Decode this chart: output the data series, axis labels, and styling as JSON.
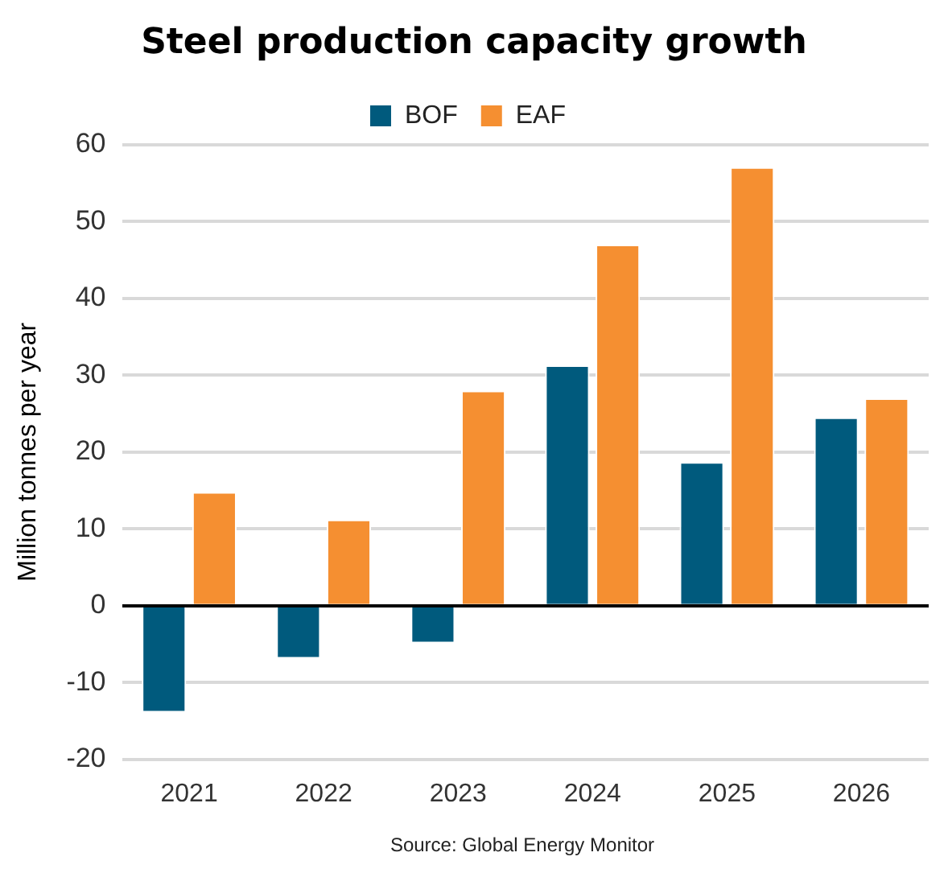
{
  "chart_data": {
    "type": "bar",
    "title": "Steel production  capacity growth",
    "ylabel": "Million tonnes per year",
    "categories": [
      "2021",
      "2022",
      "2023",
      "2024",
      "2025",
      "2026"
    ],
    "series": [
      {
        "name": "BOF",
        "color": "#005a7d",
        "values": [
          -13.9,
          -6.9,
          -4.9,
          31.3,
          18.7,
          24.5
        ]
      },
      {
        "name": "EAF",
        "color": "#f58f31",
        "values": [
          14.8,
          11.2,
          28.0,
          47.0,
          57.1,
          27.0
        ]
      }
    ],
    "ylim": [
      -20,
      60
    ],
    "yticks": [
      -20,
      -10,
      0,
      10,
      20,
      30,
      40,
      50,
      60
    ],
    "grid": "y",
    "legend": "top",
    "annotations": [
      "Source: Global Energy Monitor"
    ]
  }
}
